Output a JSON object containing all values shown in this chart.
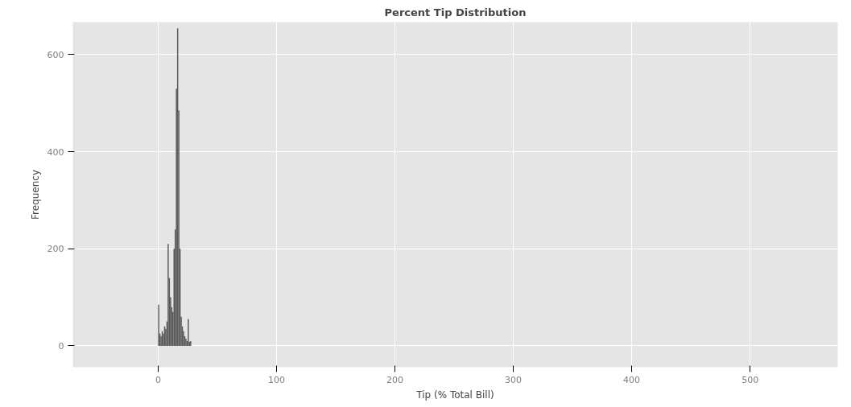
{
  "chart_data": {
    "type": "histogram",
    "title": "Percent Tip Distribution",
    "xlabel": "Tip (% Total Bill)",
    "ylabel": "Frequency",
    "bins": [
      0,
      1,
      2,
      3,
      4,
      5,
      6,
      7,
      8,
      9,
      10,
      11,
      12,
      13,
      14,
      15,
      16,
      17,
      18,
      19,
      20,
      21,
      22,
      23,
      24,
      25,
      26,
      27,
      28
    ],
    "values": [
      85,
      25,
      20,
      30,
      25,
      40,
      35,
      50,
      210,
      140,
      100,
      80,
      70,
      200,
      240,
      530,
      654,
      485,
      200,
      60,
      40,
      30,
      20,
      15,
      10,
      55,
      8,
      10
    ],
    "color": "#595959",
    "xlim": [
      -72,
      574
    ],
    "ylim": [
      -44,
      667
    ],
    "xticks": [
      0,
      100,
      200,
      300,
      400,
      500
    ],
    "yticks": [
      0,
      200,
      400,
      600
    ],
    "grid": true
  }
}
